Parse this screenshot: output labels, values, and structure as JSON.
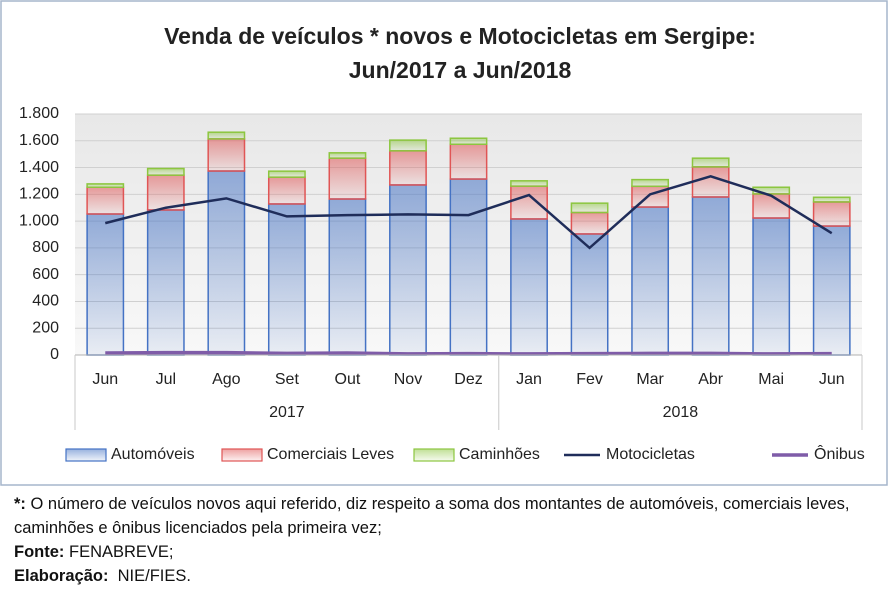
{
  "chart_data": {
    "type": "bar",
    "title": [
      "Venda de veículos * novos e Motocicletas  em Sergipe:",
      "Jun/2017 a Jun/2018"
    ],
    "categories": [
      "Jun",
      "Jul",
      "Ago",
      "Set",
      "Out",
      "Nov",
      "Dez",
      "Jan",
      "Fev",
      "Mar",
      "Abr",
      "Mai",
      "Jun"
    ],
    "groups": [
      "2017",
      null,
      null,
      null,
      null,
      null,
      null,
      "2018",
      null,
      null,
      null,
      null,
      null
    ],
    "series": [
      {
        "name": "Automóveis",
        "type": "bar",
        "color": "#4472c4",
        "values": [
          1053,
          1083,
          1374,
          1128,
          1165,
          1270,
          1314,
          1016,
          904,
          1105,
          1180,
          1023,
          963
        ]
      },
      {
        "name": "Comerciais Leves",
        "type": "bar",
        "color": "#e05555",
        "values": [
          200,
          260,
          240,
          200,
          305,
          255,
          260,
          245,
          160,
          155,
          225,
          180,
          180
        ]
      },
      {
        "name": "Caminhões",
        "type": "bar",
        "color": "#8cc63f",
        "values": [
          25,
          50,
          50,
          45,
          40,
          80,
          45,
          40,
          70,
          50,
          65,
          50,
          35
        ]
      },
      {
        "name": "Motocicletas",
        "type": "line",
        "color": "#1f2d5a",
        "values": [
          985,
          1100,
          1170,
          1035,
          1045,
          1050,
          1045,
          1195,
          800,
          1200,
          1335,
          1190,
          910
        ]
      },
      {
        "name": "Ônibus",
        "type": "line",
        "color": "#7f5ca8",
        "values": [
          15,
          18,
          18,
          12,
          15,
          8,
          10,
          8,
          10,
          12,
          12,
          8,
          10
        ]
      }
    ],
    "ylim": [
      0,
      1800
    ],
    "yticks": [
      0,
      200,
      400,
      600,
      800,
      {
        "value": 1000,
        "label": "1.000"
      },
      {
        "value": 1200,
        "label": "1.200"
      },
      {
        "value": 1400,
        "label": "1.400"
      },
      {
        "value": 1600,
        "label": "1.600"
      },
      {
        "value": 1800,
        "label": "1.800"
      }
    ],
    "grid": true
  },
  "notes": [
    {
      "label": "*:",
      "text": " O número de veículos novos aqui referido, diz respeito a soma dos montantes de automóveis, comerciais leves, caminhões e ônibus licenciados pela primeira vez;"
    },
    {
      "label": "Fonte:",
      "text": " FENABREVE;"
    },
    {
      "label": "Elaboração:",
      "text": "  NIE/FIES."
    }
  ]
}
